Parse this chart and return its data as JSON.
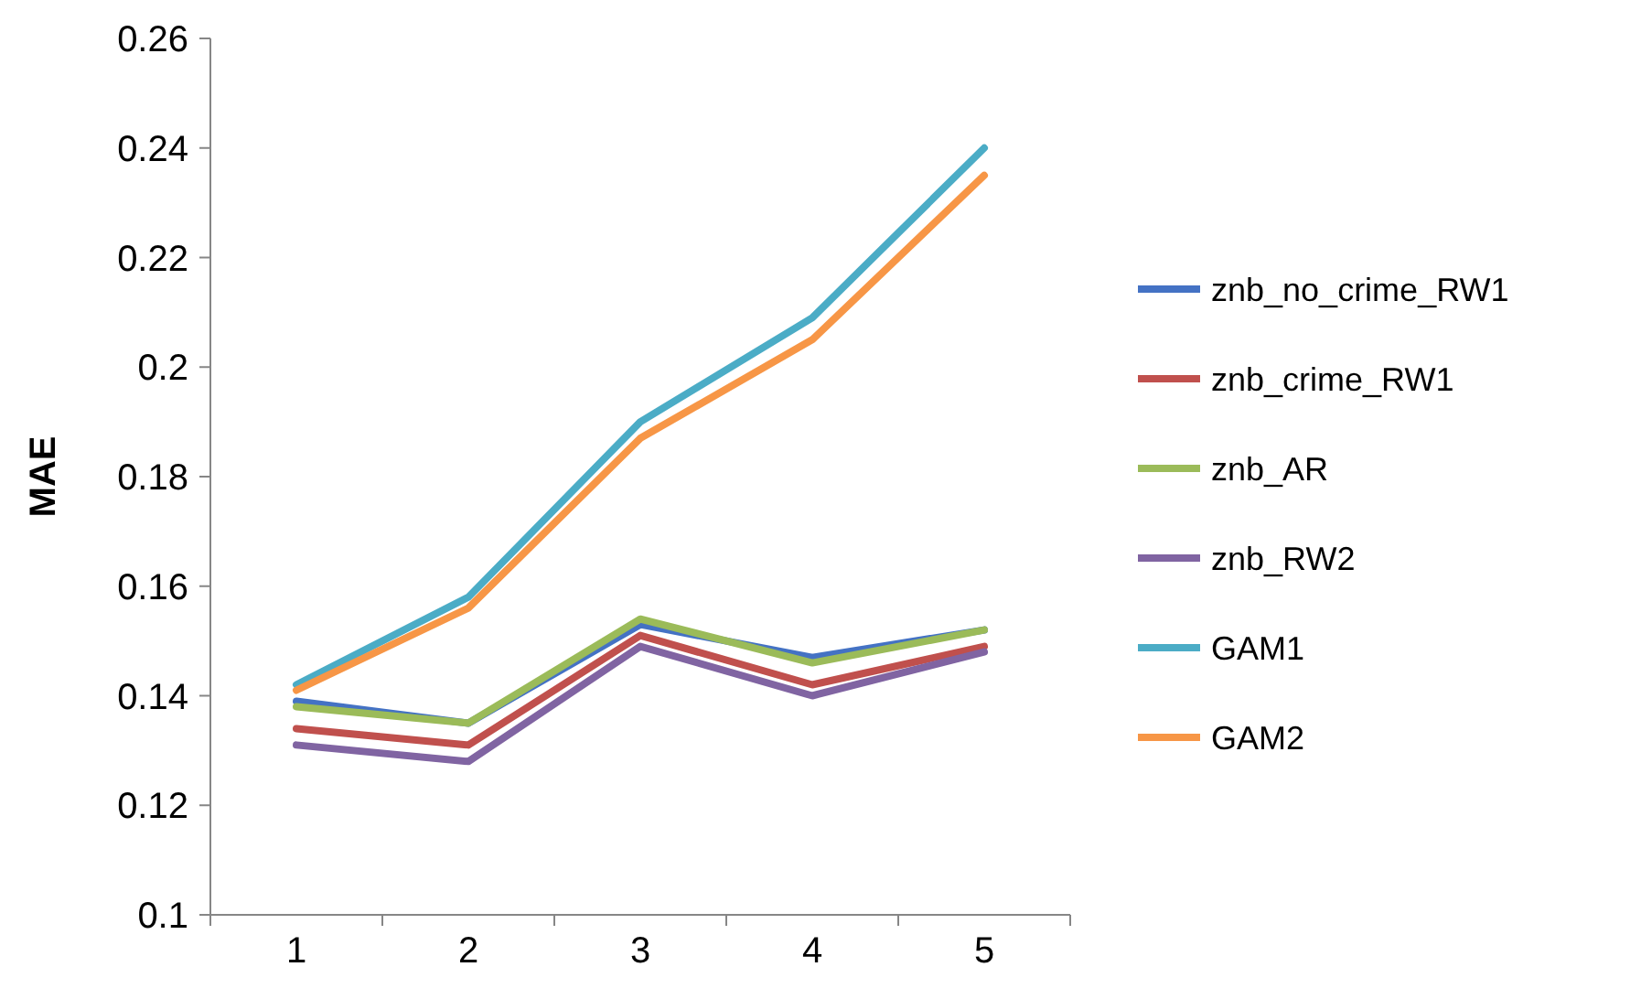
{
  "chart_data": {
    "type": "line",
    "ylabel": "MAE",
    "categories": [
      "1",
      "2",
      "3",
      "4",
      "5"
    ],
    "ylim": [
      0.1,
      0.26
    ],
    "yticks": [
      0.1,
      0.12,
      0.14,
      0.16,
      0.18,
      0.2,
      0.22,
      0.24,
      0.26
    ],
    "legend": "right",
    "grid": false,
    "series": [
      {
        "name": "znb_no_crime_RW1",
        "color": "#4472c4",
        "values": [
          0.139,
          0.135,
          0.153,
          0.147,
          0.152
        ]
      },
      {
        "name": "znb_crime_RW1",
        "color": "#c0504d",
        "values": [
          0.134,
          0.131,
          0.151,
          0.142,
          0.149
        ]
      },
      {
        "name": "znb_AR",
        "color": "#9bbb59",
        "values": [
          0.138,
          0.135,
          0.154,
          0.146,
          0.152
        ]
      },
      {
        "name": "znb_RW2",
        "color": "#8064a2",
        "values": [
          0.131,
          0.128,
          0.149,
          0.14,
          0.148
        ]
      },
      {
        "name": "GAM1",
        "color": "#4bacc6",
        "values": [
          0.142,
          0.158,
          0.19,
          0.209,
          0.24
        ]
      },
      {
        "name": "GAM2",
        "color": "#f79646",
        "values": [
          0.141,
          0.156,
          0.187,
          0.205,
          0.235
        ]
      }
    ]
  }
}
